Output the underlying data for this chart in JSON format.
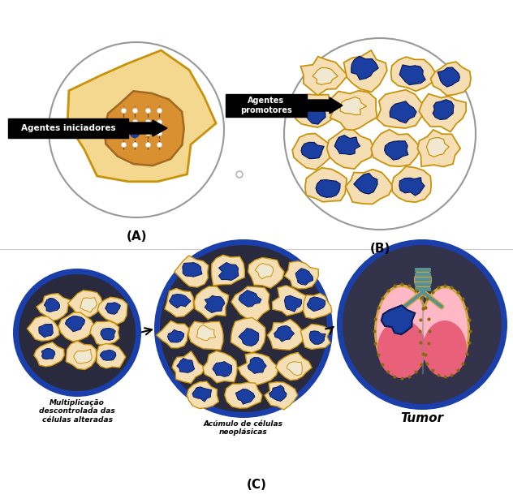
{
  "bg_color": "#ffffff",
  "cell_outer_color": "#f5deb3",
  "cell_border_color": "#c8930a",
  "blue_nucleus_color": "#1a3fa0",
  "white_nucleus_color": "#f0e8d0",
  "dark_bg_color": "#2a2a3e",
  "blue_border_color": "#1a3faa",
  "circle_border_color": "#999999",
  "label_A": "(A)",
  "label_B": "(B)",
  "label_C": "(C)",
  "label_iniciadores": "Agentes iniciadores",
  "label_promotores": "Agentes\npromotores",
  "label_mult": "Multiplicação\ndescontrolada das\ncélulas alteradas",
  "label_acumulo": "Acúmulo de células\nneoplásicas",
  "label_tumor": "Tumor",
  "lung_light_pink": "#ffb8c6",
  "lung_dark_pink": "#e8607a",
  "lung_border": "#d4a840",
  "trachea_yellow": "#d4a840",
  "trachea_teal": "#5a9090",
  "tumor_blue": "#1a3fa0"
}
